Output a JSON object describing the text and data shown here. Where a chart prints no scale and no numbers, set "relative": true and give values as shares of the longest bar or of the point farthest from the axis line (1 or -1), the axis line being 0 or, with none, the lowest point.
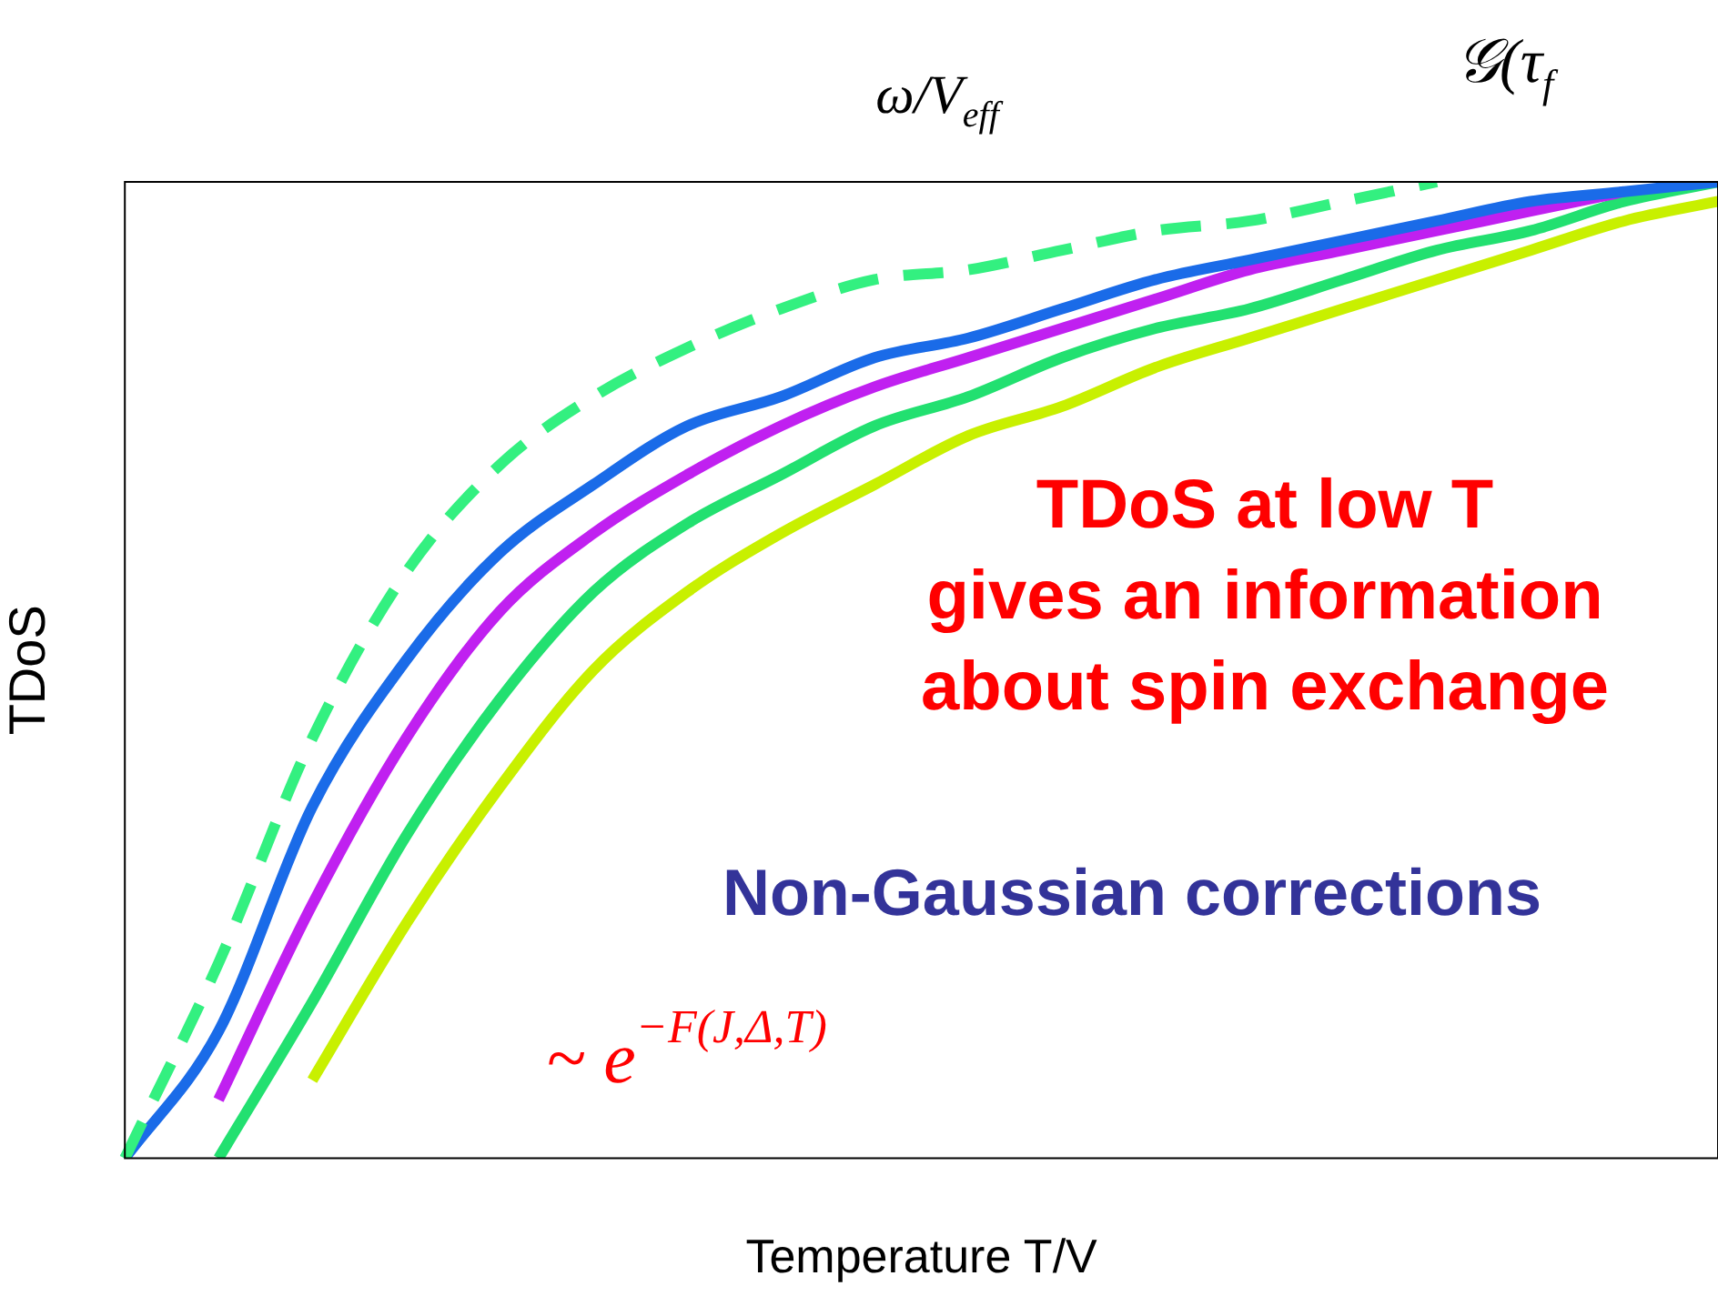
{
  "chart_data": {
    "type": "line",
    "relative": true,
    "xlabel": "Temperature T/V",
    "ylabel": "TDoS",
    "tick_labels": false,
    "grid": false,
    "legend": false,
    "marker": "none",
    "categories": [
      null,
      null,
      null,
      null,
      null,
      null,
      null,
      null,
      null,
      null,
      null,
      null,
      null,
      null,
      null,
      null,
      null,
      null
    ],
    "annotations": [
      "ω/V$_{eff}$",
      "𝒢(τ$_{f}$",
      "TDoS at low T\ngives an information\nabout spin exchange",
      "Non-Gaussian corrections",
      "~ e$^{−F(J,Δ,T)}$"
    ],
    "series": [
      {
        "color": "#33f080",
        "line_style": "dashed",
        "values": [
          0,
          0.2,
          0.43,
          0.6,
          0.71,
          0.78,
          0.83,
          0.87,
          0.9,
          0.91,
          0.93,
          0.95,
          0.96,
          0.98,
          1,
          null,
          null,
          null
        ]
      },
      {
        "color": "#1a6be8",
        "line_style": "solid",
        "values": [
          0,
          0.13,
          0.36,
          0.51,
          0.62,
          0.69,
          0.75,
          0.78,
          0.82,
          0.84,
          0.87,
          0.9,
          0.92,
          0.94,
          0.96,
          0.98,
          0.99,
          1
        ]
      },
      {
        "color": "#c020f0",
        "line_style": "solid",
        "values": [
          null,
          0.06,
          0.26,
          0.43,
          0.56,
          0.64,
          0.7,
          0.75,
          0.79,
          0.82,
          0.85,
          0.88,
          0.91,
          0.93,
          0.95,
          0.97,
          0.99,
          null
        ]
      },
      {
        "color": "#22e070",
        "line_style": "solid",
        "values": [
          null,
          0,
          0.16,
          0.33,
          0.47,
          0.58,
          0.65,
          0.7,
          0.75,
          0.78,
          0.82,
          0.85,
          0.87,
          0.9,
          0.93,
          0.95,
          0.98,
          1
        ]
      },
      {
        "color": "#c8f000",
        "line_style": "solid",
        "values": [
          null,
          null,
          0.08,
          0.24,
          0.38,
          0.5,
          0.58,
          0.64,
          0.69,
          0.74,
          0.77,
          0.81,
          0.84,
          0.87,
          0.9,
          0.93,
          0.96,
          0.98
        ]
      }
    ]
  }
}
